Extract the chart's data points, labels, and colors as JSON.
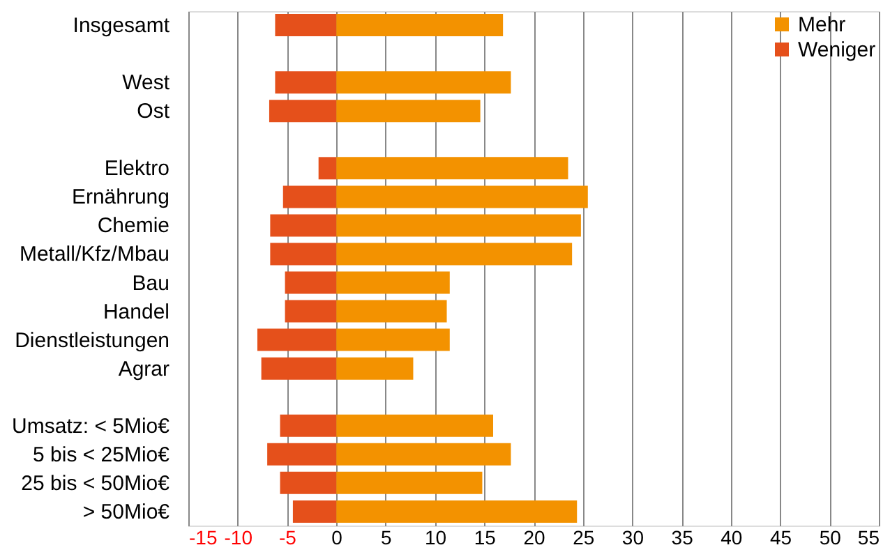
{
  "chart_data": {
    "type": "bar",
    "orientation": "horizontal",
    "stacked": true,
    "categories": [
      "Insgesamt",
      null,
      "West",
      "Ost",
      null,
      "Elektro",
      "Ernährung",
      "Chemie",
      "Metall/Kfz/Mbau",
      "Bau",
      "Handel",
      "Dienstleistungen",
      "Agrar",
      null,
      "Umsatz: < 5Mio€",
      "5 bis < 25Mio€",
      "25 bis < 50Mio€",
      "> 50Mio€"
    ],
    "series": [
      {
        "name": "Mehr",
        "color": "#f39200",
        "values": [
          16.9,
          null,
          17.7,
          14.6,
          null,
          23.5,
          25.5,
          24.8,
          23.9,
          11.5,
          11.2,
          11.5,
          7.8,
          null,
          15.9,
          17.7,
          14.8,
          24.4
        ]
      },
      {
        "name": "Weniger",
        "color": "#e5501b",
        "values": [
          -6.2,
          null,
          -6.2,
          -6.8,
          null,
          -1.8,
          -5.4,
          -6.7,
          -6.7,
          -5.2,
          -5.2,
          -8.0,
          -7.6,
          null,
          -5.7,
          -7.0,
          -5.7,
          -4.4
        ]
      }
    ],
    "xlim": [
      -15,
      55
    ],
    "xticks": [
      -15,
      -10,
      -5,
      0,
      5,
      10,
      15,
      20,
      25,
      30,
      35,
      40,
      45,
      50,
      55
    ],
    "grid": "x",
    "legend": "top right"
  }
}
